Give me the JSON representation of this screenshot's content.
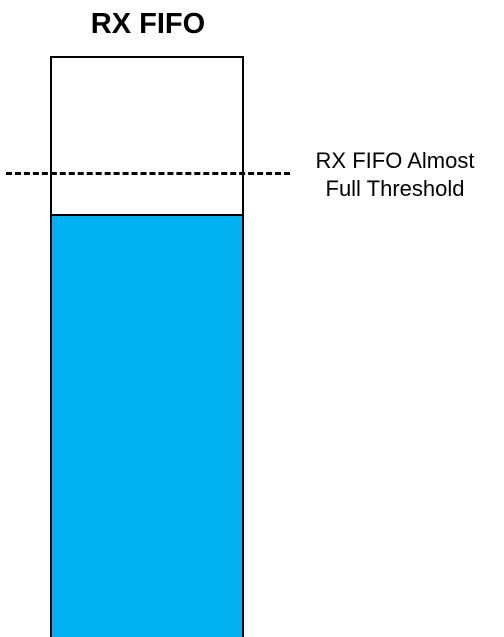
{
  "diagram": {
    "title": "RX FIFO",
    "fill_level_fraction": 0.73,
    "fill_color": "#00B0F0",
    "threshold_label_line1": "RX FIFO Almost",
    "threshold_label_line2": "Full Threshold"
  }
}
